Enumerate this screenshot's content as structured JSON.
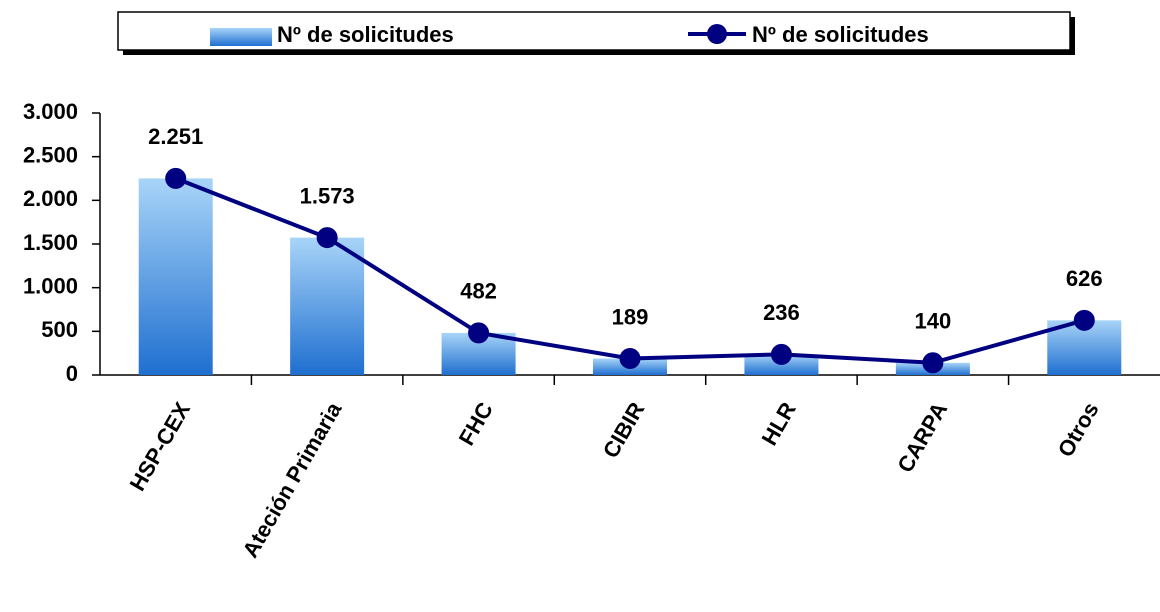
{
  "chart_data": {
    "type": "combo",
    "categories": [
      "HSP-CEX",
      "Ateción Primaria",
      "FHC",
      "CIBIR",
      "HLR",
      "CARPA",
      "Otros"
    ],
    "series": [
      {
        "name": "Nº de solicitudes",
        "type": "bar",
        "color": "#1f6fd0",
        "values": [
          2251,
          1573,
          482,
          189,
          236,
          140,
          626
        ]
      },
      {
        "name": "Nº de solicitudes",
        "type": "line",
        "color": "#000080",
        "values": [
          2251,
          1573,
          482,
          189,
          236,
          140,
          626
        ],
        "value_labels": [
          "2.251",
          "1.573",
          "482",
          "189",
          "236",
          "140",
          "626"
        ]
      }
    ],
    "ylim": [
      0,
      3000
    ],
    "yticks": [
      0,
      500,
      {
        "value": 1000,
        "label": "1.000"
      },
      {
        "value": 1500,
        "label": "1.500"
      },
      {
        "value": 2000,
        "label": "2.000"
      },
      {
        "value": 2500,
        "label": "2.500"
      },
      {
        "value": 3000,
        "label": "3.000"
      }
    ],
    "grid": false
  }
}
